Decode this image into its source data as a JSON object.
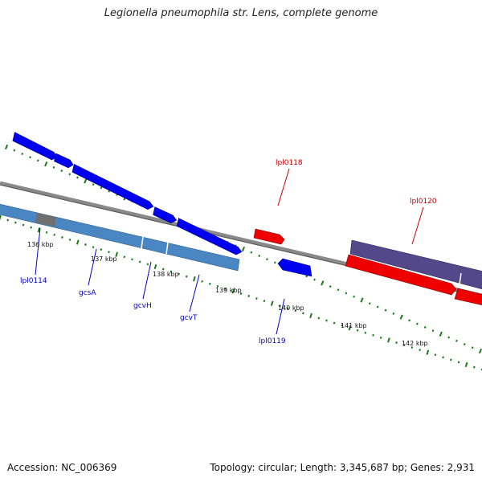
{
  "title": "Legionella pneumophila str. Lens, complete genome",
  "footer": {
    "accession": "Accession: NC_006369",
    "summary": "Topology: circular; Length: 3,345,687 bp; Genes: 2,931"
  },
  "colors": {
    "forward_gene": "#0000ee",
    "reverse_gene": "#ee0000",
    "operon_forward": "#4a86c2",
    "operon_reverse": "#52488a",
    "backbone": "#7a7a7a",
    "ticks": "#1a7a1a"
  },
  "ticks": [
    {
      "label": "136 kbp"
    },
    {
      "label": "137 kbp"
    },
    {
      "label": "138 kbp"
    },
    {
      "label": "139 kbp"
    },
    {
      "label": "140 kbp"
    },
    {
      "label": "141 kbp"
    },
    {
      "label": "142 kbp"
    }
  ],
  "gene_labels": [
    {
      "label": "lpl0114",
      "color": "#0000cc"
    },
    {
      "label": "gcsA",
      "color": "#0000cc"
    },
    {
      "label": "gcvH",
      "color": "#0000cc"
    },
    {
      "label": "gcvT",
      "color": "#0000cc"
    },
    {
      "label": "lpl0119",
      "color": "#0000cc"
    },
    {
      "label": "lpl0118",
      "color": "#cc0000"
    },
    {
      "label": "lpl0120",
      "color": "#cc0000"
    }
  ]
}
